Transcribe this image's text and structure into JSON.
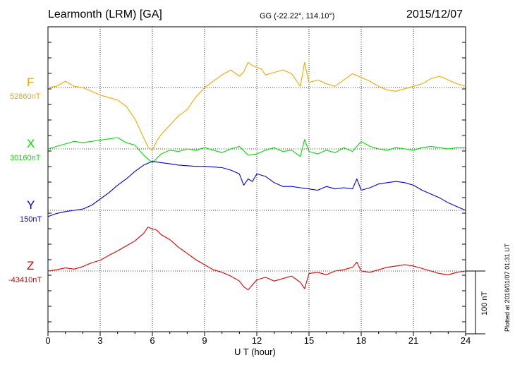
{
  "header": {
    "station": "Learmonth (LRM)  [GA]",
    "coords": "GG (-22.22°, 114.10°)",
    "date": "2015/12/07"
  },
  "footer": {
    "plotted": "Plotted at 2016/01/07 01:31  UT"
  },
  "chart_data": {
    "type": "line",
    "xlabel": "U T (hour)",
    "xlim": [
      0,
      24
    ],
    "xticks": [
      0,
      3,
      6,
      9,
      12,
      15,
      18,
      21,
      24
    ],
    "scale_bar_label": "100 nT",
    "grid": true,
    "series": [
      {
        "name": "F",
        "baseline_label": "52860nT",
        "color": "#f0a800",
        "x": [
          0,
          0.5,
          1,
          1.5,
          2,
          2.5,
          3,
          3.5,
          4,
          4.5,
          5,
          5.25,
          5.5,
          5.75,
          6,
          6.25,
          6.5,
          7,
          7.5,
          8,
          8.5,
          9,
          9.5,
          10,
          10.5,
          11,
          11.25,
          11.5,
          11.75,
          12,
          12.25,
          12.5,
          13,
          13.5,
          14,
          14.25,
          14.5,
          14.75,
          15,
          15.5,
          16,
          16.5,
          17,
          17.5,
          18,
          18.5,
          19,
          19.5,
          20,
          20.5,
          21,
          21.5,
          22,
          22.5,
          23,
          23.5,
          24
        ],
        "y": [
          52860,
          52862,
          52870,
          52862,
          52860,
          52854,
          52848,
          52844,
          52840,
          52830,
          52810,
          52795,
          52780,
          52765,
          52760,
          52775,
          52785,
          52800,
          52815,
          52825,
          52845,
          52860,
          52870,
          52880,
          52888,
          52878,
          52885,
          52900,
          52895,
          52892,
          52890,
          52880,
          52884,
          52888,
          52882,
          52872,
          52862,
          52900,
          52868,
          52872,
          52866,
          52862,
          52872,
          52882,
          52876,
          52870,
          52862,
          52856,
          52854,
          52858,
          52862,
          52866,
          52874,
          52878,
          52872,
          52866,
          52862
        ]
      },
      {
        "name": "X",
        "baseline_label": "30160nT",
        "color": "#00dd00",
        "x": [
          0,
          0.5,
          1,
          1.5,
          2,
          2.5,
          3,
          3.5,
          4,
          4.5,
          5,
          5.5,
          6,
          6.5,
          7,
          7.5,
          8,
          8.5,
          9,
          9.5,
          10,
          10.5,
          11,
          11.5,
          12,
          12.5,
          13,
          13.5,
          14,
          14.5,
          14.75,
          15,
          15.5,
          16,
          16.5,
          17,
          17.5,
          18,
          18.5,
          19,
          19.5,
          20,
          20.5,
          21,
          21.5,
          22,
          22.5,
          23,
          23.5,
          24
        ],
        "y": [
          30160,
          30164,
          30168,
          30172,
          30170,
          30172,
          30174,
          30176,
          30178,
          30170,
          30166,
          30150,
          30138,
          30152,
          30158,
          30156,
          30160,
          30158,
          30162,
          30158,
          30154,
          30160,
          30164,
          30150,
          30152,
          30158,
          30162,
          30156,
          30158,
          30148,
          30175,
          30156,
          30152,
          30158,
          30154,
          30162,
          30156,
          30172,
          30164,
          30160,
          30158,
          30162,
          30160,
          30158,
          30162,
          30164,
          30162,
          30160,
          30162,
          30162
        ]
      },
      {
        "name": "Y",
        "baseline_label": "150nT",
        "color": "#0000dd",
        "x": [
          0,
          0.5,
          1,
          1.5,
          2,
          2.5,
          3,
          3.5,
          4,
          4.5,
          5,
          5.5,
          6,
          6.5,
          7,
          7.5,
          8,
          8.5,
          9,
          9.5,
          10,
          10.5,
          11,
          11.25,
          11.5,
          11.75,
          12,
          12.5,
          13,
          13.5,
          14,
          14.5,
          15,
          15.5,
          16,
          16.5,
          17,
          17.5,
          17.75,
          18,
          18.5,
          19,
          19.5,
          20,
          20.5,
          21,
          21.5,
          22,
          22.5,
          23,
          23.5,
          24
        ],
        "y": [
          140,
          145,
          148,
          150,
          152,
          158,
          168,
          178,
          190,
          200,
          212,
          222,
          228,
          226,
          224,
          222,
          221,
          220,
          220,
          219,
          218,
          214,
          208,
          190,
          200,
          196,
          208,
          204,
          194,
          188,
          188,
          186,
          184,
          182,
          188,
          184,
          186,
          184,
          200,
          182,
          186,
          192,
          194,
          196,
          194,
          190,
          182,
          176,
          170,
          162,
          156,
          150
        ]
      },
      {
        "name": "Z",
        "baseline_label": "-43410nT",
        "color": "#dd0000",
        "x": [
          0,
          0.5,
          1,
          1.5,
          2,
          2.5,
          3,
          3.5,
          4,
          4.5,
          5,
          5.5,
          5.75,
          6,
          6.25,
          6.5,
          7,
          7.5,
          8,
          8.5,
          9,
          9.5,
          10,
          10.5,
          11,
          11.25,
          11.5,
          11.75,
          12,
          12.5,
          13,
          13.5,
          14,
          14.5,
          14.75,
          15,
          15.5,
          16,
          16.5,
          17,
          17.5,
          17.75,
          18,
          18.5,
          19,
          19.5,
          20,
          20.5,
          21,
          21.5,
          22,
          22.5,
          23,
          23.5,
          24
        ],
        "y": [
          -43410,
          -43408,
          -43405,
          -43407,
          -43403,
          -43397,
          -43393,
          -43385,
          -43378,
          -43370,
          -43362,
          -43350,
          -43340,
          -43343,
          -43345,
          -43352,
          -43360,
          -43372,
          -43382,
          -43392,
          -43400,
          -43408,
          -43412,
          -43418,
          -43426,
          -43435,
          -43440,
          -43432,
          -43424,
          -43420,
          -43426,
          -43422,
          -43418,
          -43428,
          -43438,
          -43414,
          -43412,
          -43416,
          -43410,
          -43408,
          -43404,
          -43396,
          -43410,
          -43412,
          -43408,
          -43404,
          -43402,
          -43400,
          -43402,
          -43406,
          -43410,
          -43414,
          -43416,
          -43412,
          -43410
        ]
      }
    ]
  }
}
